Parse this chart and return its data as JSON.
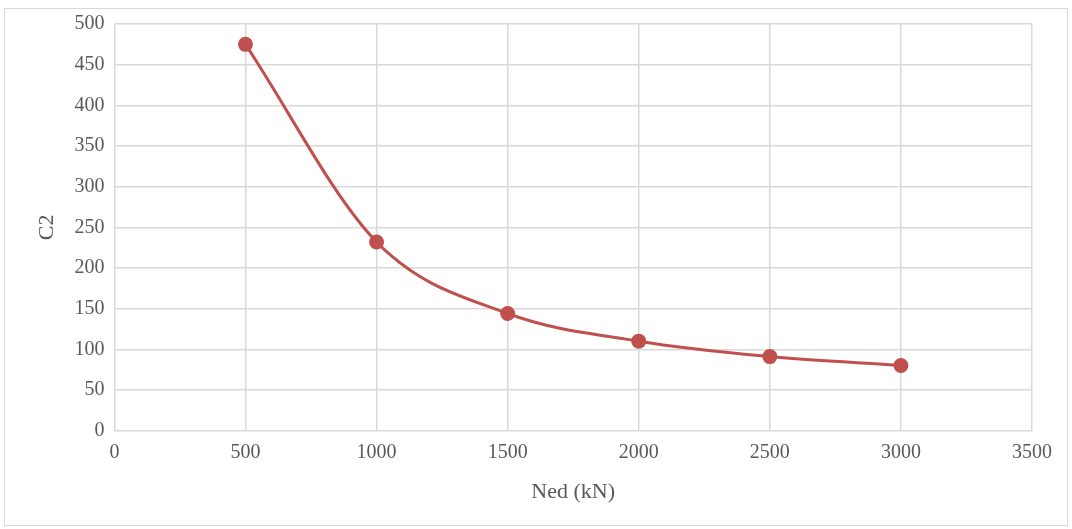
{
  "chart_data": {
    "type": "line",
    "xlabel": "Ned (kN)",
    "ylabel": "C2",
    "x": [
      500,
      1000,
      1500,
      2000,
      2500,
      3000
    ],
    "series": [
      {
        "color": "#c0504d",
        "values": [
          475,
          232,
          144,
          110,
          91,
          80
        ]
      }
    ],
    "xlim": [
      0,
      3500
    ],
    "xticks": [
      0,
      500,
      1000,
      1500,
      2000,
      2500,
      3000,
      3500
    ],
    "ylim": [
      0,
      500
    ],
    "yticks": [
      0,
      50,
      100,
      150,
      200,
      250,
      300,
      350,
      400,
      450,
      500
    ],
    "grid": true,
    "legend": false,
    "marker": "circle",
    "line_style": "solid"
  }
}
